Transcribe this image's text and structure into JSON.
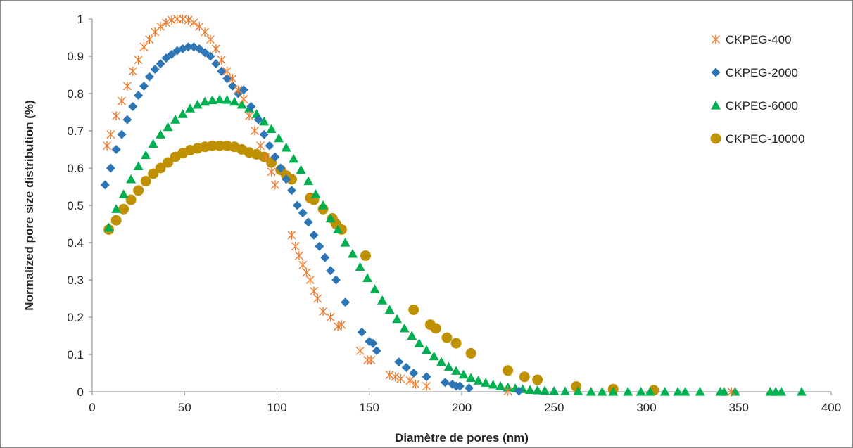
{
  "chart_data": {
    "type": "scatter",
    "title": "",
    "xlabel": "Diamètre de pores (nm)",
    "ylabel": "Normalized pore size distribution (%)",
    "xlim": [
      0,
      400
    ],
    "ylim": [
      0,
      1
    ],
    "xticks": [
      "0",
      "50",
      "100",
      "150",
      "200",
      "250",
      "300",
      "350",
      "400"
    ],
    "yticks": [
      "0",
      "0.1",
      "0.2",
      "0.3",
      "0.4",
      "0.5",
      "0.6",
      "0.7",
      "0.8",
      "0.9",
      "1"
    ],
    "grid": false,
    "legend_position": "top-right",
    "series": [
      {
        "name": "CKPEG-400",
        "marker": "star",
        "color": "#ED7D31",
        "x": [
          8,
          10,
          13,
          16,
          19,
          22,
          25,
          28,
          31,
          34,
          37,
          40,
          43,
          46,
          49,
          52,
          55,
          58,
          61,
          64,
          67,
          70,
          73,
          76,
          79,
          82,
          85,
          88,
          91,
          94,
          97,
          99,
          108,
          110,
          112,
          114,
          116,
          118,
          120,
          122,
          125,
          129,
          133,
          135,
          145,
          149,
          151,
          161,
          164,
          167,
          172,
          175,
          181,
          225,
          346
        ],
        "y": [
          0.66,
          0.69,
          0.74,
          0.78,
          0.82,
          0.86,
          0.89,
          0.925,
          0.945,
          0.965,
          0.98,
          0.99,
          0.997,
          1.0,
          1.0,
          0.997,
          0.99,
          0.98,
          0.965,
          0.945,
          0.92,
          0.89,
          0.86,
          0.84,
          0.81,
          0.785,
          0.74,
          0.7,
          0.66,
          0.63,
          0.59,
          0.555,
          0.42,
          0.39,
          0.365,
          0.34,
          0.32,
          0.3,
          0.27,
          0.25,
          0.215,
          0.2,
          0.175,
          0.18,
          0.11,
          0.085,
          0.085,
          0.045,
          0.04,
          0.035,
          0.03,
          0.02,
          0.015,
          0.002,
          0.0
        ]
      },
      {
        "name": "CKPEG-2000",
        "marker": "diamond",
        "color": "#2E75B6",
        "x": [
          7,
          10,
          13,
          16,
          19,
          22,
          25,
          28,
          31,
          34,
          37,
          40,
          43,
          46,
          49,
          52,
          55,
          58,
          61,
          64,
          67,
          70,
          73,
          76,
          79,
          82,
          86,
          90,
          93,
          96,
          99,
          102,
          105,
          108,
          111,
          114,
          117,
          120,
          123,
          126,
          129,
          132,
          137,
          146,
          150,
          152,
          154,
          166,
          170,
          174,
          181,
          191,
          195,
          197,
          199,
          204,
          231
        ],
        "y": [
          0.555,
          0.6,
          0.65,
          0.69,
          0.73,
          0.765,
          0.795,
          0.82,
          0.845,
          0.865,
          0.88,
          0.895,
          0.905,
          0.915,
          0.92,
          0.925,
          0.925,
          0.92,
          0.91,
          0.9,
          0.88,
          0.86,
          0.84,
          0.82,
          0.8,
          0.81,
          0.765,
          0.73,
          0.69,
          0.66,
          0.63,
          0.6,
          0.57,
          0.54,
          0.5,
          0.48,
          0.455,
          0.42,
          0.39,
          0.36,
          0.325,
          0.3,
          0.24,
          0.16,
          0.135,
          0.13,
          0.11,
          0.08,
          0.065,
          0.05,
          0.04,
          0.025,
          0.02,
          0.015,
          0.015,
          0.01,
          0.002
        ]
      },
      {
        "name": "CKPEG-6000",
        "marker": "triangle",
        "color": "#00B050",
        "x": [
          9,
          13,
          17,
          21,
          25,
          29,
          33,
          37,
          41,
          45,
          49,
          53,
          57,
          61,
          65,
          69,
          73,
          77,
          81,
          85,
          89,
          93,
          97,
          101,
          105,
          109,
          113,
          117,
          121,
          125,
          129,
          133,
          137,
          141,
          145,
          149,
          153,
          157,
          161,
          165,
          169,
          173,
          177,
          181,
          185,
          189,
          193,
          197,
          201,
          205,
          209,
          213,
          217,
          221,
          225,
          229,
          233,
          237,
          241,
          245,
          250,
          256,
          263,
          270,
          276,
          282,
          290,
          297,
          302,
          310,
          317,
          321,
          329,
          340,
          342,
          348,
          367,
          370,
          373,
          384
        ],
        "y": [
          0.44,
          0.49,
          0.53,
          0.57,
          0.605,
          0.635,
          0.665,
          0.69,
          0.71,
          0.73,
          0.745,
          0.76,
          0.77,
          0.778,
          0.782,
          0.784,
          0.783,
          0.778,
          0.77,
          0.76,
          0.745,
          0.725,
          0.705,
          0.68,
          0.655,
          0.625,
          0.595,
          0.565,
          0.53,
          0.5,
          0.465,
          0.435,
          0.4,
          0.37,
          0.335,
          0.305,
          0.275,
          0.245,
          0.22,
          0.195,
          0.17,
          0.15,
          0.13,
          0.112,
          0.095,
          0.08,
          0.067,
          0.056,
          0.046,
          0.037,
          0.03,
          0.024,
          0.019,
          0.015,
          0.012,
          0.009,
          0.007,
          0.005,
          0.004,
          0.003,
          0.002,
          0.001,
          0.001,
          0.0,
          0.0,
          0.0,
          0.0,
          0.0,
          0.0,
          0.0,
          0.0,
          0.0,
          0.0,
          0.0,
          0.0,
          0.0,
          0.0,
          0.0,
          0.0,
          0.0
        ]
      },
      {
        "name": "CKPEG-10000",
        "marker": "circle",
        "color": "#BF9000",
        "x": [
          9,
          13,
          17,
          21,
          25,
          29,
          33,
          37,
          41,
          45,
          49,
          53,
          57,
          61,
          65,
          69,
          73,
          77,
          81,
          85,
          89,
          93,
          97,
          102,
          105,
          108,
          118,
          120,
          125,
          130,
          132,
          135,
          148,
          174,
          183,
          186,
          192,
          197,
          205,
          225,
          234,
          241,
          262,
          282,
          304
        ],
        "y": [
          0.435,
          0.46,
          0.49,
          0.515,
          0.54,
          0.565,
          0.585,
          0.6,
          0.615,
          0.63,
          0.64,
          0.648,
          0.653,
          0.657,
          0.66,
          0.66,
          0.66,
          0.657,
          0.65,
          0.642,
          0.637,
          0.63,
          0.615,
          0.595,
          0.58,
          0.57,
          0.52,
          0.515,
          0.49,
          0.465,
          0.45,
          0.435,
          0.365,
          0.22,
          0.18,
          0.17,
          0.145,
          0.13,
          0.103,
          0.057,
          0.04,
          0.032,
          0.014,
          0.007,
          0.004
        ]
      }
    ]
  }
}
